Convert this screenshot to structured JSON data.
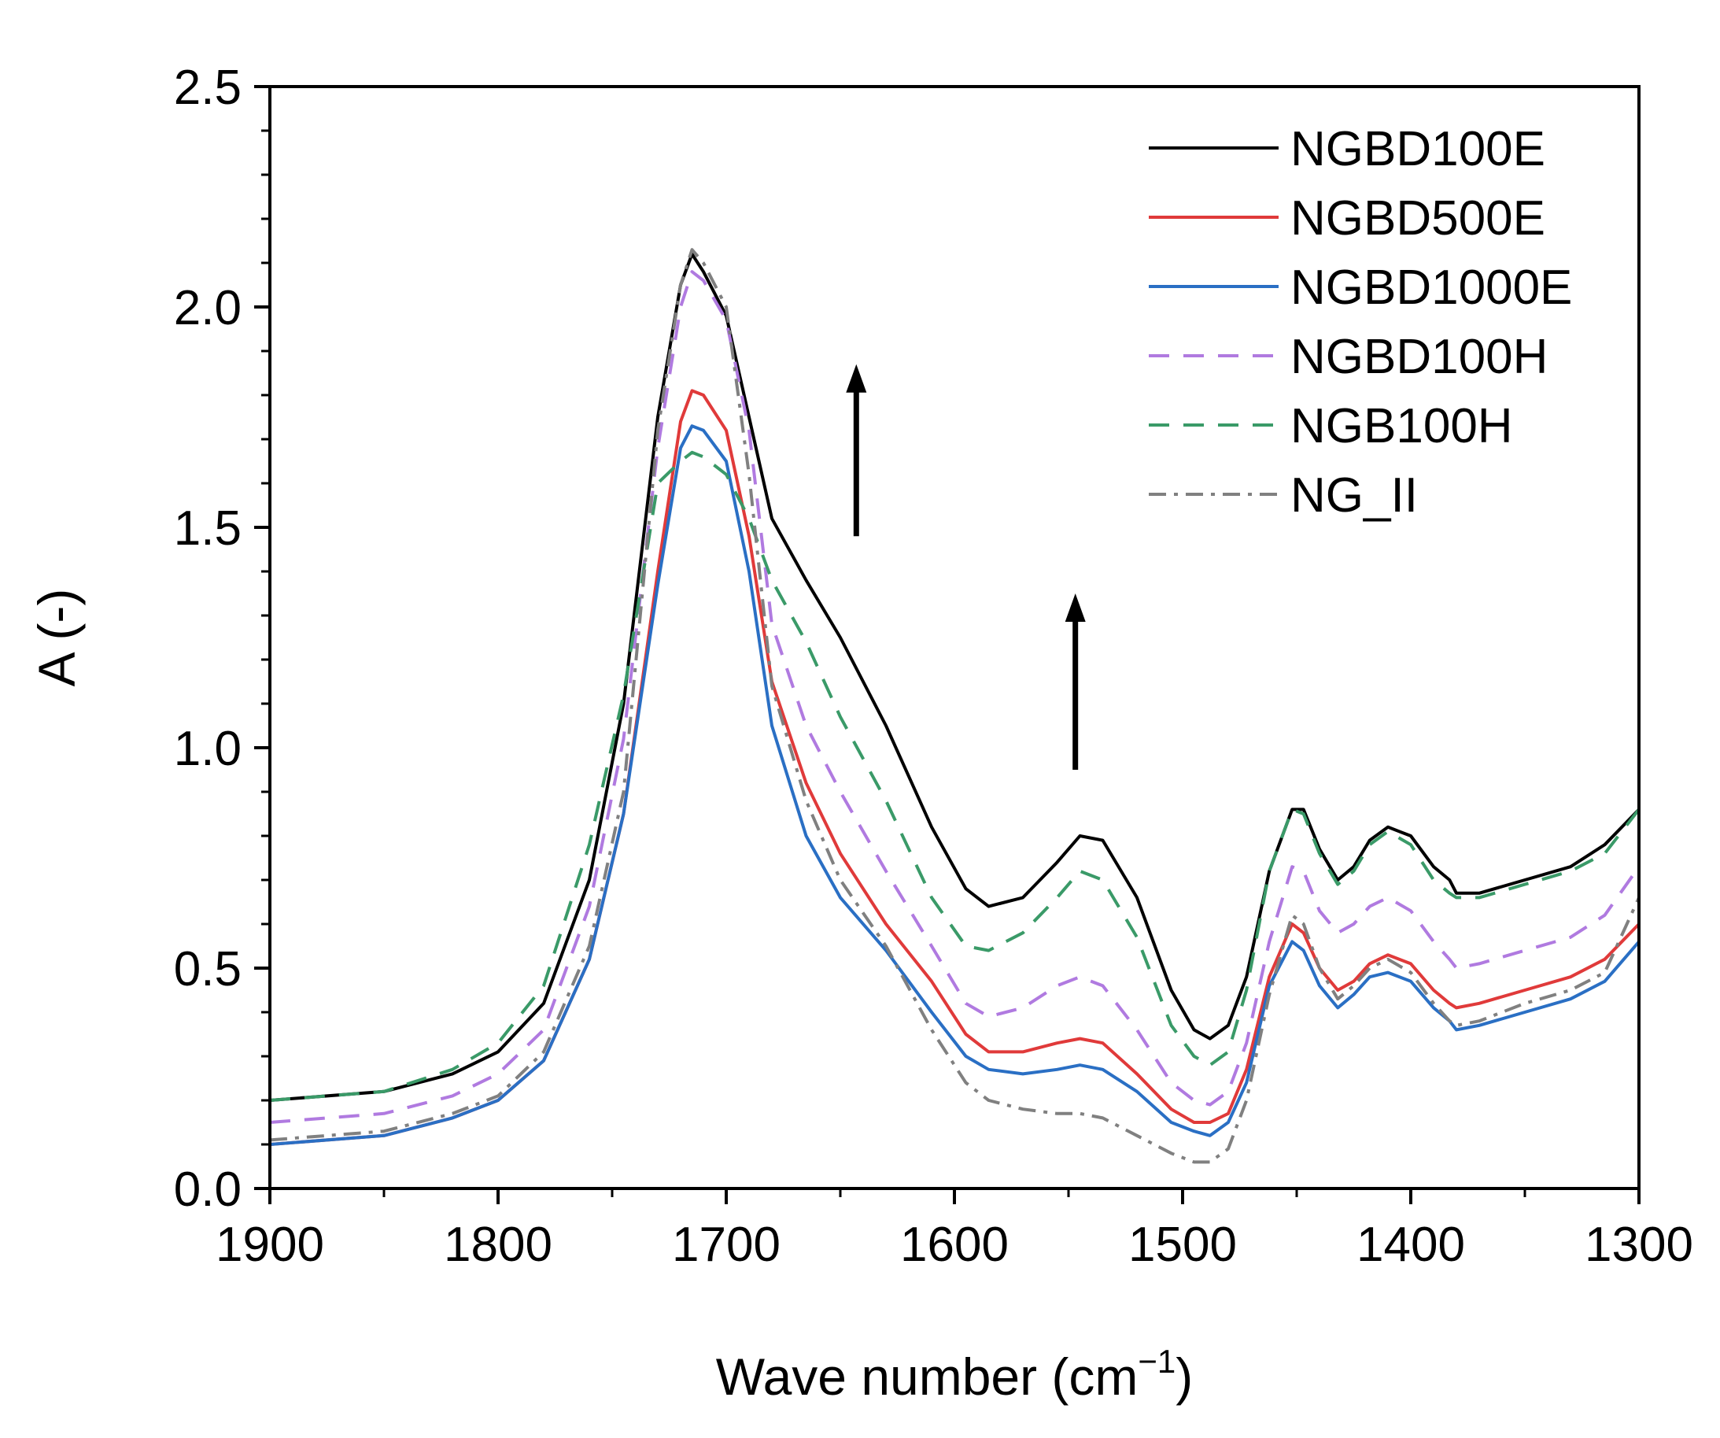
{
  "chart_data": {
    "type": "line",
    "title": "",
    "xlabel": "Wave number (cm",
    "xlabel_sup": "−1",
    "xlabel_suffix": ")",
    "ylabel": "A (-)",
    "xlim": [
      1900,
      1300
    ],
    "ylim": [
      0.0,
      2.5
    ],
    "x_ticks": [
      1900,
      1800,
      1700,
      1600,
      1500,
      1400,
      1300
    ],
    "x_tick_labels": [
      "1900",
      "1800",
      "1700",
      "1600",
      "1500",
      "1400",
      "1300"
    ],
    "y_ticks": [
      0.0,
      0.5,
      1.0,
      1.5,
      2.0,
      2.5
    ],
    "y_tick_labels": [
      "0.0",
      "0.5",
      "1.0",
      "1.5",
      "2.0",
      "2.5"
    ],
    "grid": false,
    "legend_position": "top-right",
    "x": [
      1900,
      1850,
      1820,
      1800,
      1780,
      1760,
      1745,
      1730,
      1720,
      1715,
      1710,
      1700,
      1690,
      1680,
      1665,
      1650,
      1630,
      1610,
      1595,
      1585,
      1570,
      1555,
      1545,
      1535,
      1520,
      1505,
      1495,
      1488,
      1480,
      1472,
      1462,
      1452,
      1447,
      1440,
      1432,
      1425,
      1418,
      1410,
      1400,
      1390,
      1383,
      1380,
      1370,
      1350,
      1330,
      1315,
      1300
    ],
    "series": [
      {
        "name": "NGBD100E",
        "color": "#000000",
        "dash": "solid",
        "values": [
          0.2,
          0.22,
          0.26,
          0.31,
          0.42,
          0.7,
          1.1,
          1.75,
          2.05,
          2.12,
          2.08,
          1.98,
          1.75,
          1.52,
          1.38,
          1.25,
          1.05,
          0.82,
          0.68,
          0.64,
          0.66,
          0.74,
          0.8,
          0.79,
          0.66,
          0.45,
          0.36,
          0.34,
          0.37,
          0.48,
          0.72,
          0.86,
          0.86,
          0.77,
          0.7,
          0.73,
          0.79,
          0.82,
          0.8,
          0.73,
          0.7,
          0.67,
          0.67,
          0.7,
          0.73,
          0.78,
          0.86
        ]
      },
      {
        "name": "NGBD500E",
        "color": "#e03a3a",
        "dash": "solid",
        "values": [
          0.1,
          0.12,
          0.16,
          0.2,
          0.29,
          0.52,
          0.85,
          1.4,
          1.74,
          1.81,
          1.8,
          1.72,
          1.48,
          1.15,
          0.92,
          0.76,
          0.6,
          0.47,
          0.35,
          0.31,
          0.31,
          0.33,
          0.34,
          0.33,
          0.26,
          0.18,
          0.15,
          0.15,
          0.17,
          0.27,
          0.48,
          0.6,
          0.58,
          0.5,
          0.45,
          0.47,
          0.51,
          0.53,
          0.51,
          0.45,
          0.42,
          0.41,
          0.42,
          0.45,
          0.48,
          0.52,
          0.6
        ]
      },
      {
        "name": "NGBD1000E",
        "color": "#2a6fc4",
        "dash": "solid",
        "values": [
          0.1,
          0.12,
          0.16,
          0.2,
          0.29,
          0.52,
          0.85,
          1.37,
          1.68,
          1.73,
          1.72,
          1.65,
          1.4,
          1.05,
          0.8,
          0.66,
          0.54,
          0.4,
          0.3,
          0.27,
          0.26,
          0.27,
          0.28,
          0.27,
          0.22,
          0.15,
          0.13,
          0.12,
          0.15,
          0.24,
          0.46,
          0.56,
          0.54,
          0.46,
          0.41,
          0.44,
          0.48,
          0.49,
          0.47,
          0.41,
          0.38,
          0.36,
          0.37,
          0.4,
          0.43,
          0.47,
          0.56
        ]
      },
      {
        "name": "NGBD100H",
        "color": "#b07ae0",
        "dash": "dashed",
        "values": [
          0.15,
          0.17,
          0.21,
          0.26,
          0.36,
          0.64,
          1.02,
          1.68,
          2.0,
          2.08,
          2.06,
          1.97,
          1.72,
          1.28,
          1.05,
          0.9,
          0.72,
          0.55,
          0.42,
          0.39,
          0.41,
          0.46,
          0.48,
          0.46,
          0.36,
          0.24,
          0.2,
          0.19,
          0.22,
          0.33,
          0.56,
          0.73,
          0.72,
          0.63,
          0.58,
          0.6,
          0.64,
          0.66,
          0.63,
          0.56,
          0.52,
          0.5,
          0.51,
          0.54,
          0.57,
          0.62,
          0.73
        ]
      },
      {
        "name": "NGB100H",
        "color": "#3a9a68",
        "dash": "dashed",
        "values": [
          0.2,
          0.22,
          0.27,
          0.33,
          0.46,
          0.78,
          1.12,
          1.6,
          1.65,
          1.67,
          1.66,
          1.62,
          1.52,
          1.38,
          1.24,
          1.07,
          0.88,
          0.66,
          0.55,
          0.54,
          0.58,
          0.66,
          0.72,
          0.7,
          0.57,
          0.37,
          0.3,
          0.28,
          0.31,
          0.45,
          0.72,
          0.86,
          0.85,
          0.76,
          0.69,
          0.72,
          0.78,
          0.81,
          0.78,
          0.7,
          0.67,
          0.66,
          0.66,
          0.69,
          0.72,
          0.76,
          0.86
        ]
      },
      {
        "name": "NG_II",
        "color": "#808080",
        "dash": "dashdot",
        "values": [
          0.11,
          0.13,
          0.17,
          0.21,
          0.31,
          0.55,
          0.9,
          1.72,
          2.05,
          2.13,
          2.1,
          2.0,
          1.62,
          1.14,
          0.88,
          0.7,
          0.55,
          0.36,
          0.24,
          0.2,
          0.18,
          0.17,
          0.17,
          0.16,
          0.12,
          0.08,
          0.06,
          0.06,
          0.09,
          0.2,
          0.44,
          0.62,
          0.6,
          0.5,
          0.43,
          0.46,
          0.5,
          0.52,
          0.49,
          0.42,
          0.38,
          0.37,
          0.38,
          0.42,
          0.45,
          0.49,
          0.66
        ]
      }
    ],
    "annotations": [
      {
        "type": "arrow",
        "direction": "up",
        "x": 1643,
        "y_from": 1.48,
        "y_to": 1.87
      },
      {
        "type": "arrow",
        "direction": "up",
        "x": 1547,
        "y_from": 0.95,
        "y_to": 1.35
      }
    ]
  }
}
